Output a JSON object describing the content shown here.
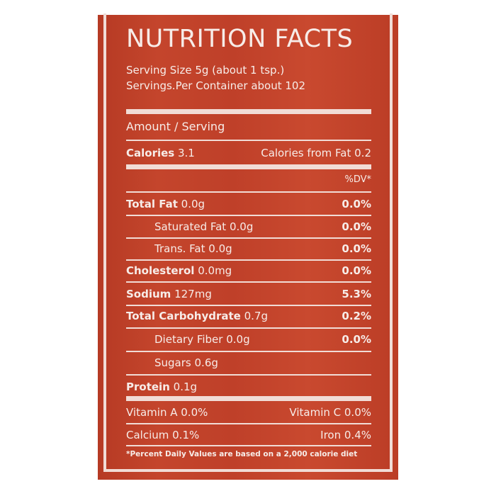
{
  "label": {
    "title": "NUTRITION FACTS",
    "serving_size": "Serving Size 5g (about 1 tsp.)",
    "servings_per_container": "Servings.Per Container about 102",
    "amount_per_serving": "Amount / Serving",
    "calories_label": "Calories",
    "calories_value": "3.1",
    "calories_from_fat": "Calories from Fat 0.2",
    "dv_header": "%DV*",
    "nutrients": [
      {
        "name": "Total Fat",
        "amount": "0.0g",
        "dv": "0.0%"
      },
      {
        "name": "Saturated Fat",
        "amount": "0.0g",
        "dv": "0.0%"
      },
      {
        "name": "Trans. Fat",
        "amount": "0.0g",
        "dv": "0.0%"
      },
      {
        "name": "Cholesterol",
        "amount": "0.0mg",
        "dv": "0.0%"
      },
      {
        "name": "Sodium",
        "amount": "127mg",
        "dv": "5.3%"
      },
      {
        "name": "Total Carbohydrate",
        "amount": "0.7g",
        "dv": "0.2%"
      },
      {
        "name": "Dietary Fiber",
        "amount": "0.0g",
        "dv": "0.0%"
      },
      {
        "name": "Sugars",
        "amount": "0.6g",
        "dv": ""
      },
      {
        "name": "Protein",
        "amount": "0.1g",
        "dv": ""
      }
    ],
    "vitamin_a": "Vitamin A 0.0%",
    "vitamin_c": "Vitamin C 0.0%",
    "calcium": "Calcium 0.1%",
    "iron": "Iron 0.4%",
    "footnote": "*Percent Daily Values are based on a 2,000 calorie diet"
  },
  "colors": {
    "background": "#c0432a",
    "text": "#f7ece8"
  }
}
